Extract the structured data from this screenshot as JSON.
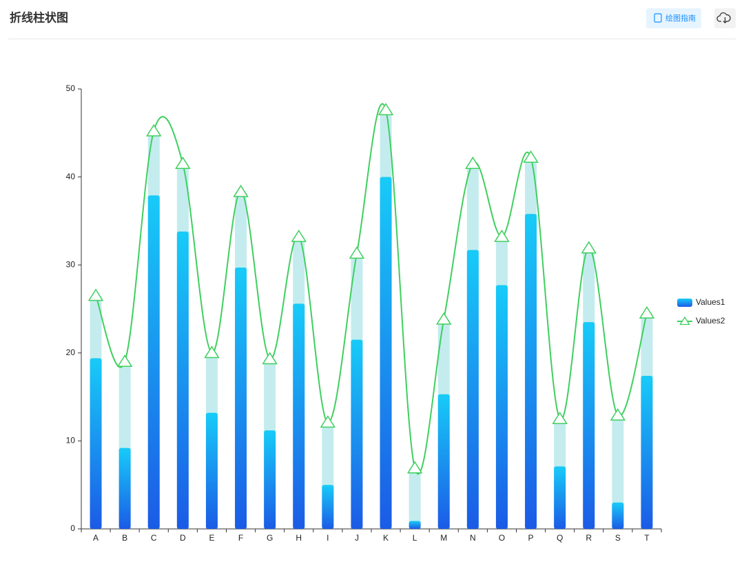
{
  "header": {
    "title": "折线柱状图",
    "guide_button": "绘图指南"
  },
  "chart_data": {
    "type": "bar-line",
    "categories": [
      "A",
      "B",
      "C",
      "D",
      "E",
      "F",
      "G",
      "H",
      "I",
      "J",
      "K",
      "L",
      "M",
      "N",
      "O",
      "P",
      "Q",
      "R",
      "S",
      "T"
    ],
    "series": [
      {
        "name": "Values1",
        "type": "bar",
        "color": "#1a8bf0",
        "gradient": [
          "#18cbf8",
          "#1b5be6"
        ],
        "values": [
          19.4,
          9.2,
          37.9,
          33.8,
          13.2,
          29.7,
          11.2,
          25.6,
          5.0,
          21.5,
          40.0,
          0.9,
          15.3,
          31.7,
          27.7,
          35.8,
          7.1,
          23.5,
          3.0,
          17.4
        ]
      },
      {
        "name": "Values2",
        "type": "line",
        "color": "#3ecf5f",
        "background_color": "#c4ecee",
        "smooth": true,
        "marker": "triangle",
        "values": [
          26.5,
          19.0,
          45.2,
          41.5,
          20.0,
          38.3,
          19.3,
          33.2,
          12.1,
          31.3,
          47.6,
          6.9,
          23.8,
          41.5,
          33.2,
          42.2,
          12.5,
          31.9,
          12.9,
          24.5
        ]
      }
    ],
    "ylim": [
      0,
      50
    ],
    "yticks": [
      0,
      10,
      20,
      30,
      40,
      50
    ],
    "grid": false,
    "legend": "right"
  }
}
